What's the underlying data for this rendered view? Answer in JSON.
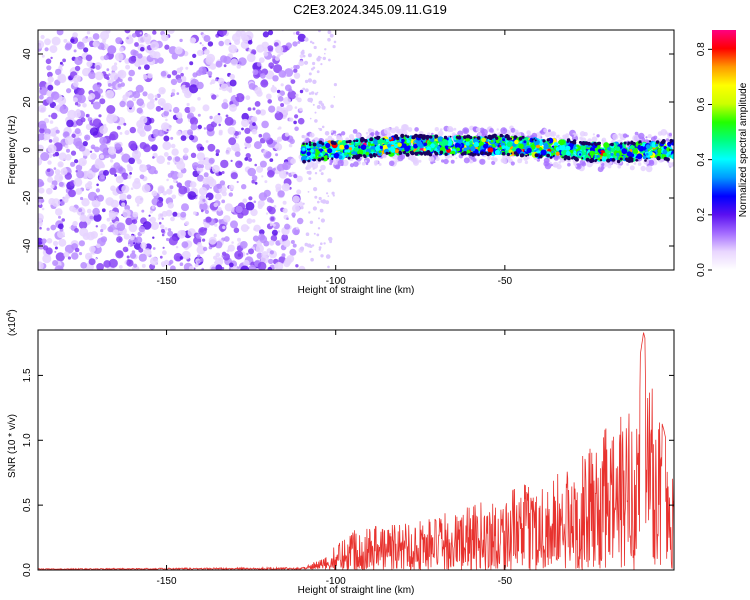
{
  "title": "C2E3.2024.345.09.11.G19",
  "colors": {
    "snr_line": "#e8322e",
    "scatter_dots": "#7b2ff0",
    "colormap": [
      "#ffffff",
      "#e9d6ff",
      "#a36bff",
      "#5a10f0",
      "#0000ff",
      "#0099ff",
      "#00ffff",
      "#00ff80",
      "#22ff00",
      "#ccff00",
      "#ffff00",
      "#ff9900",
      "#ff0000",
      "#ff0080"
    ]
  },
  "chart_data": [
    {
      "type": "heatmap",
      "name": "spectrogram",
      "xlabel": "Height of straight line (km)",
      "ylabel": "Frequency (Hz)",
      "xlim": [
        -188,
        0
      ],
      "ylim": [
        -50,
        50
      ],
      "xticks": [
        -150,
        -100,
        -50
      ],
      "yticks": [
        -40,
        -20,
        0,
        20,
        40
      ],
      "noise_region_x": [
        -188,
        -110
      ],
      "signal_band": {
        "x_range": [
          -110,
          0
        ],
        "center_hz": [
          {
            "x": -110,
            "y": -1
          },
          {
            "x": -80,
            "y": 2
          },
          {
            "x": -50,
            "y": 2
          },
          {
            "x": -20,
            "y": -1
          },
          {
            "x": 0,
            "y": 0
          }
        ],
        "half_width_hz": 3
      },
      "colorbar": {
        "label": "Normalized spectral amplitude",
        "range": [
          0.0,
          0.87
        ],
        "ticks": [
          "0.0",
          "0.2",
          "0.4",
          "0.6",
          "0.8"
        ]
      }
    },
    {
      "type": "line",
      "name": "snr",
      "xlabel": "Height of straight line (km)",
      "ylabel": "SNR (10 * v/v)",
      "yscale_label": "(x10",
      "yscale_exp": "4",
      "yscale_close": ")",
      "xlim": [
        -188,
        0
      ],
      "ylim": [
        0,
        1.85
      ],
      "xticks": [
        -150,
        -100,
        -50
      ],
      "yticks": [
        0.0,
        0.5,
        1.0,
        1.5
      ],
      "envelope": [
        {
          "x": -188,
          "y": 0.01
        },
        {
          "x": -110,
          "y": 0.02
        },
        {
          "x": -103,
          "y": 0.1
        },
        {
          "x": -95,
          "y": 0.35
        },
        {
          "x": -80,
          "y": 0.38
        },
        {
          "x": -65,
          "y": 0.45
        },
        {
          "x": -50,
          "y": 0.6
        },
        {
          "x": -40,
          "y": 0.7
        },
        {
          "x": -30,
          "y": 0.8
        },
        {
          "x": -20,
          "y": 1.1
        },
        {
          "x": -12,
          "y": 1.3
        },
        {
          "x": -9,
          "y": 1.83
        },
        {
          "x": -3,
          "y": 1.2
        },
        {
          "x": 0,
          "y": 0.8
        }
      ]
    }
  ]
}
